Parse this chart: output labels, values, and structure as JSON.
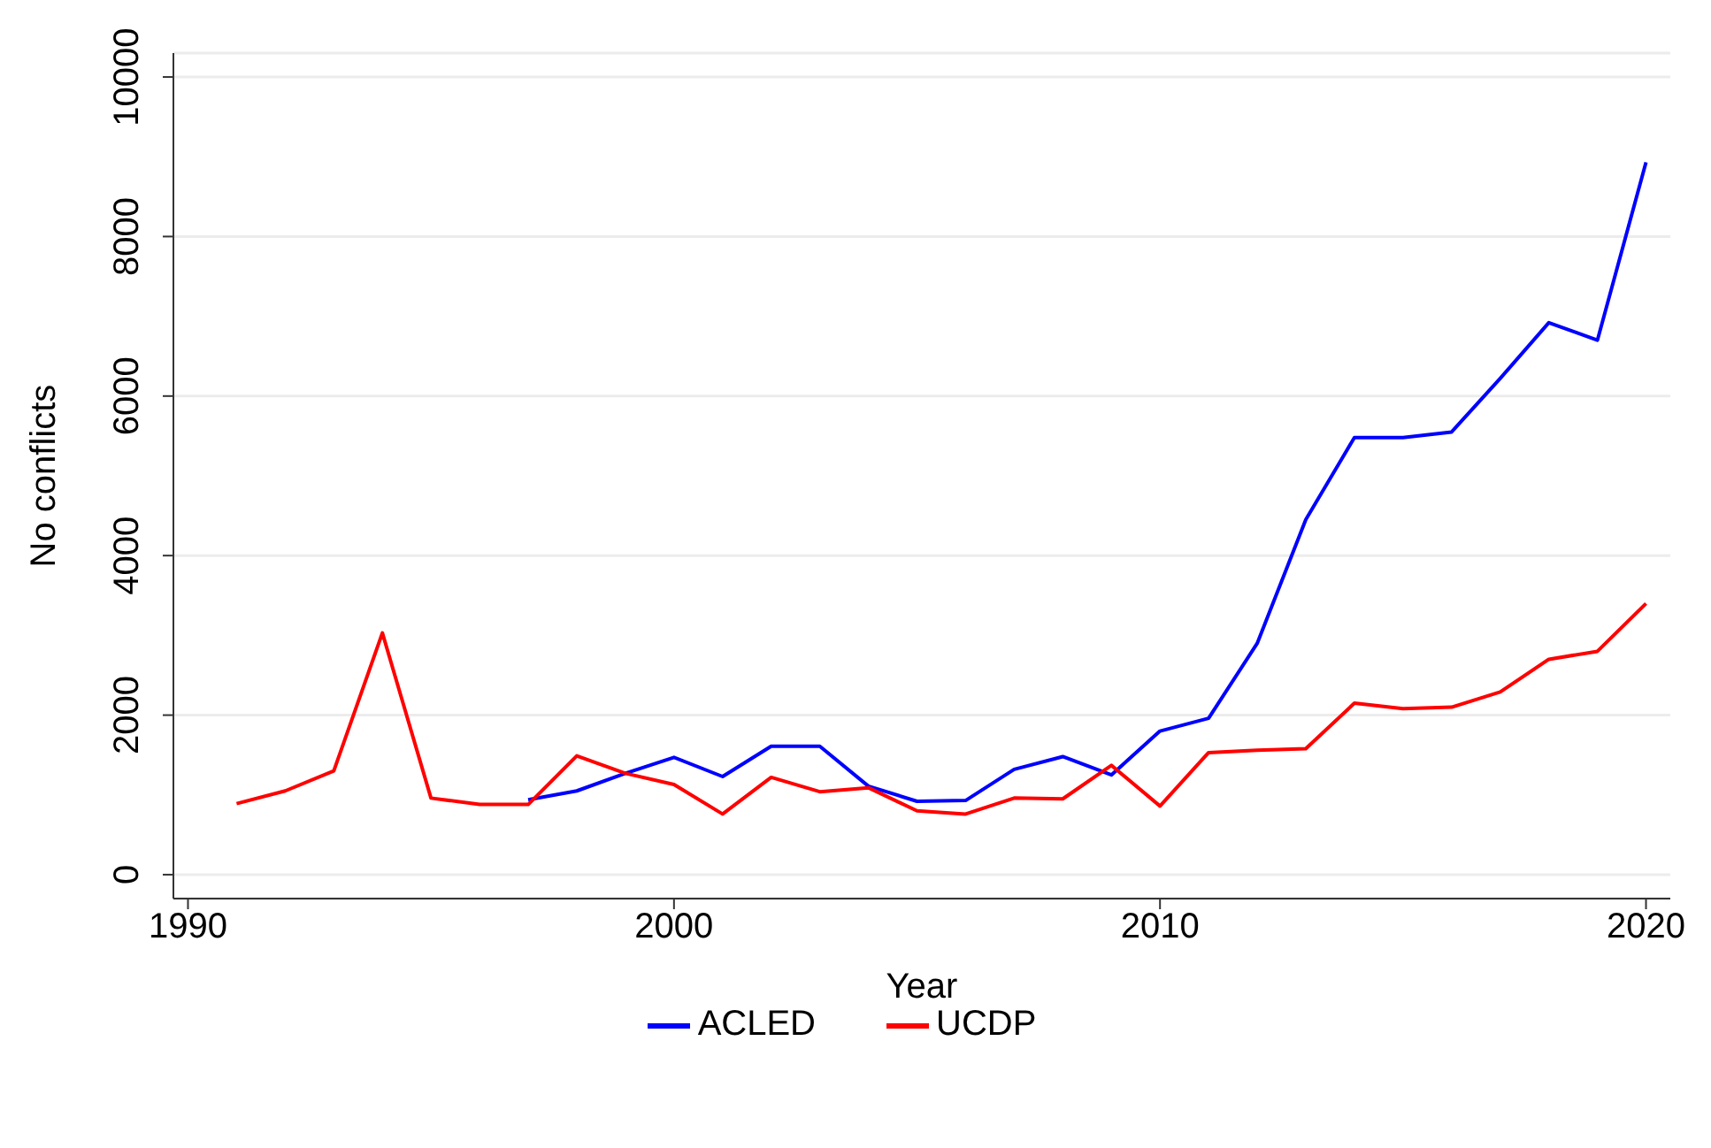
{
  "chart_data": {
    "type": "line",
    "xlabel": "Year",
    "ylabel": "No conflicts",
    "x": [
      1991,
      1992,
      1993,
      1994,
      1995,
      1996,
      1997,
      1998,
      1999,
      2000,
      2001,
      2002,
      2003,
      2004,
      2005,
      2006,
      2007,
      2008,
      2009,
      2010,
      2011,
      2012,
      2013,
      2014,
      2015,
      2016,
      2017,
      2018,
      2019,
      2020
    ],
    "series": [
      {
        "name": "ACLED",
        "color": "#0000ff",
        "values": [
          null,
          null,
          null,
          null,
          null,
          null,
          940,
          1050,
          1270,
          1470,
          1230,
          1610,
          1610,
          1110,
          920,
          930,
          1320,
          1480,
          1250,
          1800,
          1960,
          2900,
          4450,
          5480,
          5480,
          5550,
          6220,
          6920,
          6700,
          8930
        ]
      },
      {
        "name": "UCDP",
        "color": "#ff0000",
        "values": [
          890,
          1050,
          1300,
          3030,
          960,
          880,
          880,
          1490,
          1270,
          1130,
          760,
          1220,
          1040,
          1090,
          800,
          760,
          960,
          950,
          1370,
          860,
          1530,
          1560,
          1580,
          2150,
          2080,
          2100,
          2290,
          2700,
          2800,
          3400
        ]
      }
    ],
    "xlim": [
      1989.7,
      2020.5
    ],
    "xticks": [
      1990,
      2000,
      2010,
      2020
    ],
    "ylim": [
      -300,
      10300
    ],
    "yticks": [
      0,
      2000,
      4000,
      6000,
      8000,
      10000
    ],
    "grid": "y",
    "legend": "bottom",
    "marker": "none",
    "line_style": "solid"
  }
}
